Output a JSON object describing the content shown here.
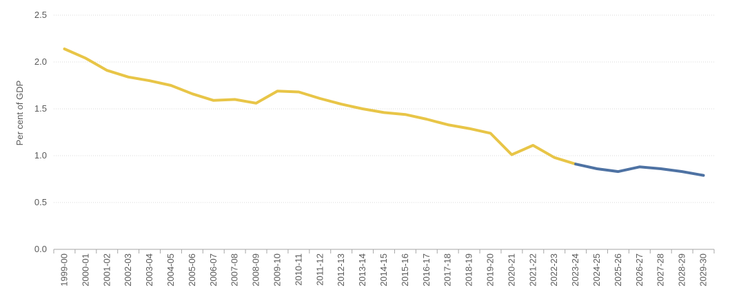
{
  "chart_data": {
    "type": "line",
    "title": "",
    "xlabel": "",
    "ylabel": "Per cent of GDP",
    "ylim": [
      0,
      2.5
    ],
    "yticks": [
      "0.0",
      "0.5",
      "1.0",
      "1.5",
      "2.0",
      "2.5"
    ],
    "grid": true,
    "categories": [
      "1999-00",
      "2000-01",
      "2001-02",
      "2002-03",
      "2003-04",
      "2004-05",
      "2005-06",
      "2006-07",
      "2007-08",
      "2008-09",
      "2009-10",
      "2010-11",
      "2011-12",
      "2012-13",
      "2013-14",
      "2014-15",
      "2015-16",
      "2016-17",
      "2017-18",
      "2018-19",
      "2019-20",
      "2020-21",
      "2021-22",
      "2022-23",
      "2023-24",
      "2024-25",
      "2025-26",
      "2026-27",
      "2027-28",
      "2028-29",
      "2029-30"
    ],
    "series": [
      {
        "color": "#e8c547",
        "values": [
          2.14,
          2.04,
          1.91,
          1.84,
          1.8,
          1.75,
          1.66,
          1.59,
          1.6,
          1.56,
          1.69,
          1.68,
          1.61,
          1.55,
          1.5,
          1.46,
          1.44,
          1.39,
          1.33,
          1.29,
          1.24,
          1.01,
          1.11,
          0.98,
          0.91,
          null,
          null,
          null,
          null,
          null,
          null
        ]
      },
      {
        "color": "#4e72a3",
        "values": [
          null,
          null,
          null,
          null,
          null,
          null,
          null,
          null,
          null,
          null,
          null,
          null,
          null,
          null,
          null,
          null,
          null,
          null,
          null,
          null,
          null,
          null,
          null,
          null,
          0.91,
          0.86,
          0.83,
          0.88,
          0.86,
          0.83,
          0.79
        ]
      }
    ]
  }
}
